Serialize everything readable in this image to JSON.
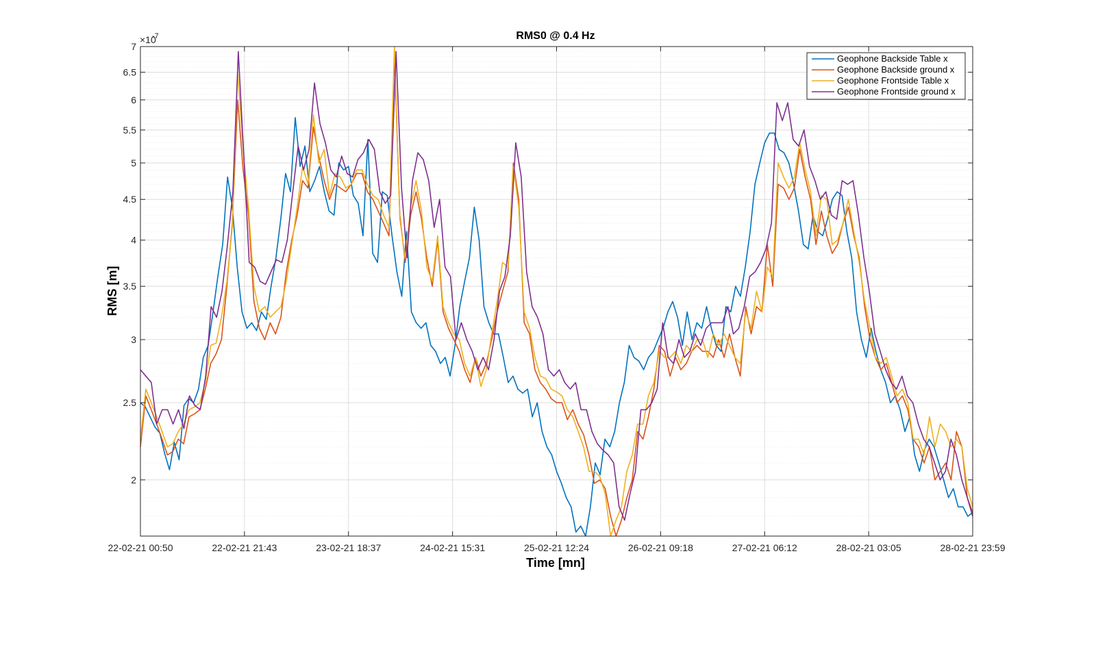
{
  "chart_data": {
    "type": "line",
    "title": "RMS0 @ 0.4 Hz",
    "xlabel": "Time [mn]",
    "ylabel": "RMS [m]",
    "y_exponent_label": "×10",
    "y_exponent_power": "-7",
    "y_scale": "log",
    "ylim": [
      1.7,
      7
    ],
    "yticks": [
      2,
      2.5,
      3,
      3.5,
      4,
      4.5,
      5,
      5.5,
      6,
      6.5,
      7
    ],
    "ytick_labels": [
      "2",
      "2.5",
      "3",
      "3.5",
      "4",
      "4.5",
      "5",
      "5.5",
      "6",
      "6.5",
      "7"
    ],
    "xtick_labels": [
      "22-02-21 00:50",
      "22-02-21 21:43",
      "23-02-21 18:37",
      "24-02-21 15:31",
      "25-02-21 12:24",
      "26-02-21 09:18",
      "27-02-21 06:12",
      "28-02-21 03:05",
      "28-02-21 23:59"
    ],
    "x_index_range": [
      0,
      160
    ],
    "grid": true,
    "minor_grid": true,
    "legend_position": "top-right",
    "colors": {
      "series1": "#0072BD",
      "series2": "#D95319",
      "series3": "#EDB120",
      "series4": "#7E2F8E",
      "axes": "#262626",
      "grid": "#dcdcdc"
    },
    "series": [
      {
        "name": "Geophone Backside Table x",
        "color": "#0072BD",
        "values": [
          2.5,
          2.47,
          2.4,
          2.33,
          2.29,
          2.16,
          2.06,
          2.23,
          2.12,
          2.48,
          2.53,
          2.5,
          2.6,
          2.85,
          2.95,
          3.25,
          3.6,
          3.95,
          4.8,
          4.4,
          3.7,
          3.25,
          3.1,
          3.15,
          3.08,
          3.25,
          3.18,
          3.5,
          3.8,
          4.25,
          4.85,
          4.6,
          5.7,
          4.95,
          5.25,
          4.6,
          4.75,
          4.95,
          4.6,
          4.35,
          4.3,
          5.0,
          4.9,
          4.95,
          4.55,
          4.45,
          4.05,
          5.35,
          3.85,
          3.75,
          4.6,
          4.55,
          4.05,
          3.65,
          3.4,
          4.1,
          3.25,
          3.15,
          3.1,
          3.15,
          2.95,
          2.9,
          2.8,
          2.85,
          2.7,
          2.95,
          3.3,
          3.55,
          3.8,
          4.4,
          4.0,
          3.3,
          3.15,
          3.05,
          3.05,
          2.85,
          2.65,
          2.7,
          2.6,
          2.57,
          2.6,
          2.4,
          2.5,
          2.3,
          2.2,
          2.15,
          2.05,
          1.98,
          1.9,
          1.85,
          1.72,
          1.75,
          1.67,
          1.85,
          2.1,
          2.03,
          2.25,
          2.2,
          2.3,
          2.5,
          2.65,
          2.95,
          2.85,
          2.82,
          2.75,
          2.85,
          2.9,
          3.0,
          3.1,
          3.25,
          3.35,
          3.2,
          2.95,
          3.25,
          3.0,
          3.15,
          3.1,
          3.3,
          3.1,
          2.95,
          2.9,
          3.3,
          3.25,
          3.5,
          3.4,
          3.7,
          4.1,
          4.7,
          5.0,
          5.3,
          5.45,
          5.45,
          5.2,
          5.15,
          5.0,
          4.7,
          4.35,
          3.95,
          3.9,
          4.3,
          4.1,
          4.05,
          4.25,
          4.5,
          4.6,
          4.55,
          4.1,
          3.8,
          3.25,
          3.0,
          2.85,
          3.1,
          2.9,
          2.75,
          2.65,
          2.5,
          2.55,
          2.45,
          2.3,
          2.4,
          2.15,
          2.05,
          2.18,
          2.25,
          2.2,
          2.1,
          2.0,
          1.9,
          1.95,
          1.85,
          1.85,
          1.8,
          1.82
        ]
      },
      {
        "name": "Geophone Backside ground x",
        "color": "#D95319",
        "values": [
          2.2,
          2.55,
          2.45,
          2.35,
          2.25,
          2.15,
          2.17,
          2.25,
          2.22,
          2.4,
          2.42,
          2.45,
          2.6,
          2.8,
          2.88,
          3.0,
          3.5,
          4.2,
          6.0,
          4.9,
          4.3,
          3.35,
          3.1,
          3.0,
          3.15,
          3.05,
          3.2,
          3.65,
          4.0,
          4.3,
          4.75,
          4.65,
          5.55,
          5.1,
          4.75,
          4.5,
          4.7,
          4.65,
          4.6,
          4.7,
          4.85,
          4.85,
          4.6,
          4.5,
          4.35,
          4.2,
          4.05,
          6.8,
          4.3,
          3.75,
          4.3,
          4.6,
          4.25,
          3.8,
          3.5,
          4.0,
          3.25,
          3.1,
          3.0,
          2.9,
          2.75,
          2.65,
          2.85,
          2.7,
          2.8,
          3.0,
          3.25,
          3.45,
          3.65,
          5.0,
          4.5,
          3.15,
          3.05,
          2.75,
          2.65,
          2.6,
          2.53,
          2.5,
          2.5,
          2.38,
          2.45,
          2.35,
          2.28,
          2.15,
          1.98,
          2.0,
          1.95,
          1.8,
          1.68,
          1.78,
          1.9,
          2.0,
          2.3,
          2.25,
          2.4,
          2.6,
          2.95,
          2.9,
          2.7,
          2.85,
          2.75,
          2.8,
          2.9,
          2.95,
          2.9,
          2.9,
          2.85,
          3.0,
          2.85,
          3.05,
          2.85,
          2.7,
          3.3,
          3.05,
          3.3,
          3.25,
          3.95,
          3.5,
          4.7,
          4.65,
          4.5,
          4.65,
          5.2,
          4.8,
          4.5,
          3.95,
          4.35,
          4.05,
          3.85,
          3.95,
          4.2,
          4.4,
          4.05,
          3.8,
          3.3,
          3.0,
          2.85,
          2.75,
          2.8,
          2.65,
          2.5,
          2.55,
          2.45,
          2.25,
          2.2,
          2.1,
          2.2,
          2.0,
          2.05,
          2.1,
          2.0,
          2.3,
          2.2,
          1.9,
          1.82
        ]
      },
      {
        "name": "Geophone Frontside Table x",
        "color": "#EDB120",
        "values": [
          2.25,
          2.6,
          2.5,
          2.4,
          2.3,
          2.2,
          2.22,
          2.3,
          2.35,
          2.45,
          2.47,
          2.5,
          2.65,
          2.95,
          2.97,
          3.2,
          3.55,
          4.15,
          6.5,
          5.2,
          4.4,
          3.5,
          3.25,
          3.3,
          3.2,
          3.25,
          3.3,
          3.55,
          3.95,
          4.4,
          4.95,
          4.7,
          5.75,
          5.0,
          5.2,
          4.55,
          4.85,
          4.8,
          4.65,
          4.7,
          4.9,
          4.9,
          4.7,
          4.55,
          4.5,
          4.3,
          4.15,
          7.0,
          4.25,
          3.8,
          4.4,
          4.75,
          4.35,
          3.7,
          3.55,
          4.05,
          3.3,
          3.15,
          3.05,
          3.0,
          2.8,
          2.7,
          2.85,
          2.62,
          2.75,
          3.05,
          3.35,
          3.75,
          3.7,
          4.95,
          4.4,
          3.25,
          3.1,
          2.85,
          2.7,
          2.68,
          2.6,
          2.58,
          2.55,
          2.45,
          2.4,
          2.3,
          2.2,
          2.05,
          2.05,
          2.02,
          1.92,
          1.7,
          1.78,
          1.85,
          2.05,
          2.15,
          2.35,
          2.35,
          2.55,
          2.65,
          2.9,
          2.85,
          2.85,
          2.9,
          2.8,
          2.95,
          2.9,
          3.0,
          3.0,
          2.85,
          3.05,
          2.95,
          3.05,
          2.95,
          2.85,
          2.8,
          3.25,
          3.1,
          3.45,
          3.25,
          3.7,
          3.6,
          5.0,
          4.8,
          4.65,
          4.8,
          5.3,
          4.9,
          4.6,
          4.05,
          4.55,
          4.5,
          3.95,
          4.0,
          4.2,
          4.5,
          4.1,
          3.75,
          3.35,
          3.1,
          2.85,
          2.8,
          2.85,
          2.7,
          2.55,
          2.6,
          2.5,
          2.25,
          2.25,
          2.15,
          2.4,
          2.2,
          2.35,
          2.3,
          2.2,
          2.25,
          2.2,
          1.95,
          1.85
        ]
      },
      {
        "name": "Geophone Frontside ground x",
        "color": "#7E2F8E",
        "values": [
          2.75,
          2.7,
          2.65,
          2.35,
          2.45,
          2.45,
          2.35,
          2.45,
          2.32,
          2.55,
          2.48,
          2.45,
          2.7,
          3.3,
          3.2,
          3.45,
          3.95,
          4.6,
          6.9,
          5.1,
          3.75,
          3.7,
          3.55,
          3.52,
          3.65,
          3.78,
          3.75,
          4.0,
          4.6,
          5.25,
          4.9,
          5.2,
          6.3,
          5.6,
          5.3,
          4.9,
          4.8,
          5.1,
          4.85,
          4.8,
          5.05,
          5.15,
          5.35,
          5.2,
          4.6,
          4.45,
          4.55,
          6.9,
          4.65,
          3.8,
          4.75,
          5.15,
          5.05,
          4.75,
          4.15,
          4.5,
          3.7,
          3.6,
          3.0,
          3.15,
          3.0,
          2.9,
          2.75,
          2.85,
          2.75,
          3.0,
          3.45,
          3.6,
          4.05,
          5.3,
          4.8,
          3.65,
          3.3,
          3.2,
          3.05,
          2.75,
          2.7,
          2.75,
          2.65,
          2.6,
          2.65,
          2.45,
          2.45,
          2.3,
          2.22,
          2.18,
          2.15,
          2.1,
          1.85,
          1.78,
          1.92,
          2.05,
          2.45,
          2.45,
          2.5,
          2.6,
          3.15,
          2.85,
          2.8,
          3.0,
          2.85,
          2.9,
          3.05,
          2.95,
          3.1,
          3.15,
          3.15,
          3.15,
          3.3,
          3.05,
          3.1,
          3.3,
          3.6,
          3.65,
          3.75,
          3.9,
          4.2,
          5.95,
          5.65,
          5.95,
          5.35,
          5.25,
          5.5,
          4.95,
          4.75,
          4.5,
          4.6,
          4.3,
          4.25,
          4.75,
          4.7,
          4.75,
          4.3,
          3.8,
          3.45,
          3.05,
          2.9,
          2.75,
          2.65,
          2.6,
          2.7,
          2.55,
          2.5,
          2.35,
          2.25,
          2.2,
          2.1,
          2.0,
          2.05,
          2.25,
          2.15,
          2.0,
          1.9,
          1.8
        ]
      }
    ]
  }
}
